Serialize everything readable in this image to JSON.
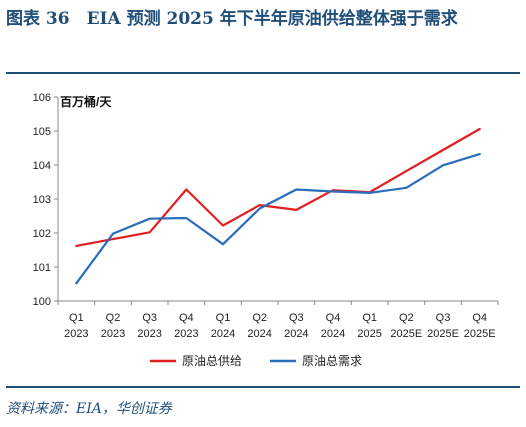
{
  "title": "图表 36　EIA 预测 2025 年下半年原油供给整体强于需求",
  "source": "资料来源：EIA，华创证券",
  "chart_data": {
    "type": "line",
    "title": "图表 36　EIA 预测 2025 年下半年原油供给整体强于需求",
    "ylabel": "百万桶/天",
    "ylim": [
      100,
      106
    ],
    "yticks": [
      100,
      101,
      102,
      103,
      104,
      105,
      106
    ],
    "categories": [
      [
        "Q1",
        "2023"
      ],
      [
        "Q2",
        "2023"
      ],
      [
        "Q3",
        "2023"
      ],
      [
        "Q4",
        "2023"
      ],
      [
        "Q1",
        "2024"
      ],
      [
        "Q2",
        "2024"
      ],
      [
        "Q3",
        "2024"
      ],
      [
        "Q4",
        "2024"
      ],
      [
        "Q1",
        "2025"
      ],
      [
        "Q2",
        "2025E"
      ],
      [
        "Q3",
        "2025E"
      ],
      [
        "Q4",
        "2025E"
      ]
    ],
    "grid": false,
    "legend_position": "bottom",
    "series": [
      {
        "name": "原油总供给",
        "color": "#e02020",
        "values": [
          101.62,
          101.82,
          102.02,
          103.28,
          102.22,
          102.82,
          102.68,
          103.26,
          103.2,
          103.82,
          104.44,
          105.06
        ]
      },
      {
        "name": "原油总需求",
        "color": "#2a6ebb",
        "values": [
          100.52,
          101.98,
          102.42,
          102.44,
          101.67,
          102.72,
          103.28,
          103.22,
          103.18,
          103.33,
          103.99,
          104.32
        ]
      }
    ]
  }
}
